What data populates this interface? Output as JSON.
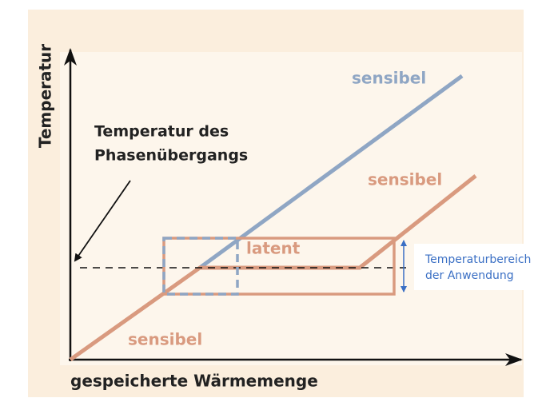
{
  "axes": {
    "y_label": "Temperatur",
    "x_label": "gespeicherte Wärmemenge"
  },
  "annotation": {
    "lines": [
      "Temperatur des",
      "Phasenübergangs"
    ]
  },
  "labels": {
    "blue_sensible": "sensibel",
    "orange_sensible_top": "sensibel",
    "latent": "latent",
    "orange_sensible_bottom": "sensibel"
  },
  "range_box": {
    "lines": [
      "Temperaturbereich",
      "der Anwendung"
    ]
  }
}
